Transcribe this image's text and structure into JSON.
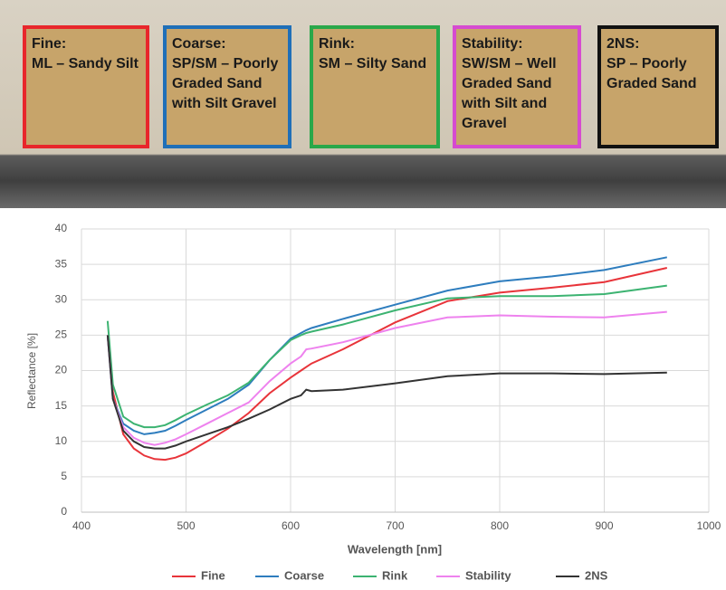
{
  "samples": [
    {
      "title": "Fine:",
      "desc": "ML – Sandy Silt",
      "color": "#e8262b"
    },
    {
      "title": "Coarse:",
      "desc": "SP/SM – Poorly Graded Sand with Silt Gravel",
      "color": "#1f6fb8"
    },
    {
      "title": "Rink:",
      "desc": "SM – Silty Sand",
      "color": "#2aa84a"
    },
    {
      "title": "Stability:",
      "desc": "SW/SM – Well Graded Sand with Silt and Gravel",
      "color": "#d64bd0"
    },
    {
      "title": "2NS:",
      "desc": "SP – Poorly Graded Sand",
      "color": "#111111"
    }
  ],
  "chart_data": {
    "type": "line",
    "x_label": "Wavelength [nm]",
    "y_label": "Reflectance [%]",
    "x": [
      425,
      430,
      440,
      450,
      460,
      470,
      480,
      490,
      500,
      520,
      540,
      560,
      580,
      600,
      610,
      615,
      620,
      650,
      700,
      750,
      800,
      850,
      900,
      960
    ],
    "series": [
      {
        "name": "Fine",
        "color": "#e8343a",
        "values": [
          25,
          17,
          11,
          9,
          8,
          7.5,
          7.4,
          7.7,
          8.3,
          10,
          11.8,
          14,
          16.8,
          19,
          20,
          20.5,
          21,
          23,
          26.8,
          29.8,
          31,
          31.7,
          32.5,
          34.5
        ]
      },
      {
        "name": "Coarse",
        "color": "#2e7dbe",
        "values": [
          25,
          16,
          12.5,
          11.5,
          11,
          11.2,
          11.5,
          12.2,
          13,
          14.5,
          16,
          18,
          21.5,
          24.5,
          25.3,
          25.7,
          26,
          27.3,
          29.3,
          31.3,
          32.6,
          33.3,
          34.2,
          36
        ]
      },
      {
        "name": "Rink",
        "color": "#3cb371",
        "values": [
          27,
          18,
          13.5,
          12.5,
          12,
          12,
          12.3,
          13,
          13.8,
          15.2,
          16.5,
          18.3,
          21.5,
          24.3,
          25,
          25.3,
          25.5,
          26.5,
          28.5,
          30.2,
          30.5,
          30.5,
          30.8,
          32
        ]
      },
      {
        "name": "Stability",
        "color": "#ee82ee",
        "values": [
          25,
          16,
          12,
          10.5,
          9.8,
          9.5,
          9.8,
          10.3,
          11,
          12.5,
          14,
          15.5,
          18.5,
          21,
          22,
          23,
          23.1,
          24,
          26,
          27.5,
          27.8,
          27.6,
          27.5,
          28.3
        ]
      },
      {
        "name": "2NS",
        "color": "#333333",
        "values": [
          25,
          16,
          11.5,
          10,
          9.2,
          9,
          9,
          9.4,
          10,
          11,
          12,
          13.2,
          14.5,
          16,
          16.5,
          17.3,
          17.1,
          17.3,
          18.2,
          19.2,
          19.6,
          19.6,
          19.5,
          19.7
        ]
      }
    ],
    "xlim": [
      400,
      1000
    ],
    "xticks": [
      400,
      500,
      600,
      700,
      800,
      900,
      1000
    ],
    "ylim": [
      0,
      40
    ],
    "yticks": [
      0,
      5,
      10,
      15,
      20,
      25,
      30,
      35,
      40
    ],
    "grid": true,
    "legend": "bottom"
  }
}
